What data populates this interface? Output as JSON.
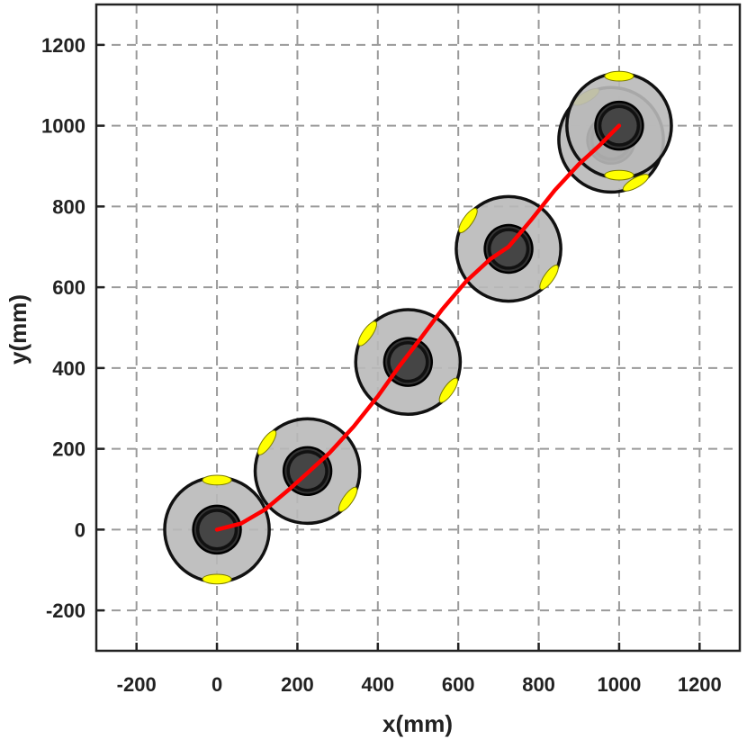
{
  "chart_data": {
    "type": "scatter",
    "title": "",
    "xlabel": "x(mm)",
    "ylabel": "y(mm)",
    "xlim": [
      -300,
      1300
    ],
    "ylim": [
      -300,
      1300
    ],
    "xticks": [
      -200,
      0,
      200,
      400,
      600,
      800,
      1000,
      1200
    ],
    "yticks": [
      -200,
      0,
      200,
      400,
      600,
      800,
      1000,
      1200
    ],
    "xtick_labels": [
      "-200",
      "0",
      "200",
      "400",
      "600",
      "800",
      "1000",
      "1200"
    ],
    "ytick_labels": [
      "-200",
      "0",
      "200",
      "400",
      "600",
      "800",
      "1000",
      "1200"
    ],
    "grid": true,
    "trajectory": {
      "color": "#ff0000",
      "x": [
        0,
        60,
        120,
        180,
        225,
        280,
        340,
        400,
        450,
        500,
        560,
        620,
        680,
        725,
        780,
        840,
        900,
        950,
        1000
      ],
      "y": [
        0,
        15,
        50,
        100,
        140,
        190,
        255,
        330,
        400,
        465,
        545,
        615,
        670,
        700,
        765,
        840,
        905,
        950,
        1000
      ]
    },
    "robot_poses": [
      {
        "x": 0,
        "y": 0,
        "heading_deg": 0
      },
      {
        "x": 225,
        "y": 145,
        "heading_deg": 55
      },
      {
        "x": 475,
        "y": 415,
        "heading_deg": 55
      },
      {
        "x": 725,
        "y": 695,
        "heading_deg": 55
      },
      {
        "x": 980,
        "y": 965,
        "heading_deg": 30
      },
      {
        "x": 1000,
        "y": 1000,
        "heading_deg": 0
      }
    ],
    "colors": {
      "robot_body": "#b9b9b9",
      "robot_core": "#454545",
      "robot_outline": "#111111",
      "wheel": "#ffff00",
      "trajectory": "#ff0000",
      "grid": "#9a9a9a"
    }
  }
}
